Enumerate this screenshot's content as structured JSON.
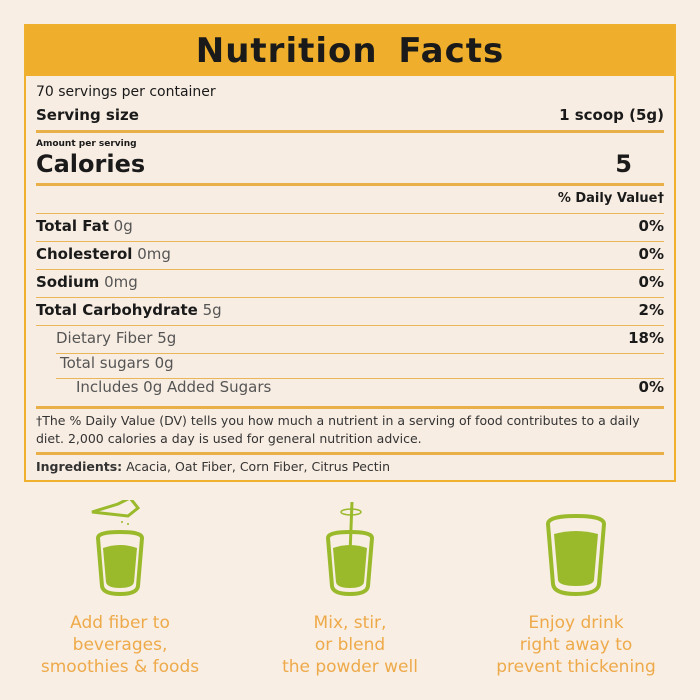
{
  "title": "Nutrition Facts",
  "servings": "70 servings per container",
  "serving_size_label": "Serving size",
  "serving_size": "1 scoop (5g)",
  "amount_per_serving": "Amount per serving",
  "calories_label": "Calories",
  "calories": "5",
  "dv_header": "% Daily Value†",
  "nutrients": [
    {
      "name": "Total Fat",
      "amount": "0g",
      "dv": "0%"
    },
    {
      "name": "Cholesterol",
      "amount": "0mg",
      "dv": "0%"
    },
    {
      "name": "Sodium",
      "amount": "0mg",
      "dv": "0%"
    },
    {
      "name": "Total Carbohydrate",
      "amount": "5g",
      "dv": "2%"
    },
    {
      "name": "Dietary Fiber 5g",
      "dv": "18%"
    },
    {
      "name": "Total sugars 0g",
      "dv": ""
    },
    {
      "name": "Includes 0g Added Sugars",
      "dv": "0%"
    }
  ],
  "footnote": "†The % Daily Value (DV) tells you how much a nutrient in a serving of food contributes to a daily diet. 2,000 calories a day is used for general nutrition advice.",
  "ingredients_label": "Ingredients:",
  "ingredients": "Acacia, Oat Fiber, Corn Fiber,  Citrus Pectin",
  "steps": [
    {
      "icon": "scoop-glass-icon",
      "text": [
        "Add fiber to",
        "beverages,",
        "smoothies & foods"
      ]
    },
    {
      "icon": "stir-glass-icon",
      "text": [
        "Mix, stir,",
        "or blend",
        "the powder well"
      ]
    },
    {
      "icon": "full-glass-icon",
      "text": [
        "Enjoy drink",
        "right away to",
        "prevent thickening"
      ]
    }
  ],
  "colors": {
    "accent": "#efae2b",
    "green": "#9aba2c",
    "text_orange": "#eeaa4a"
  }
}
